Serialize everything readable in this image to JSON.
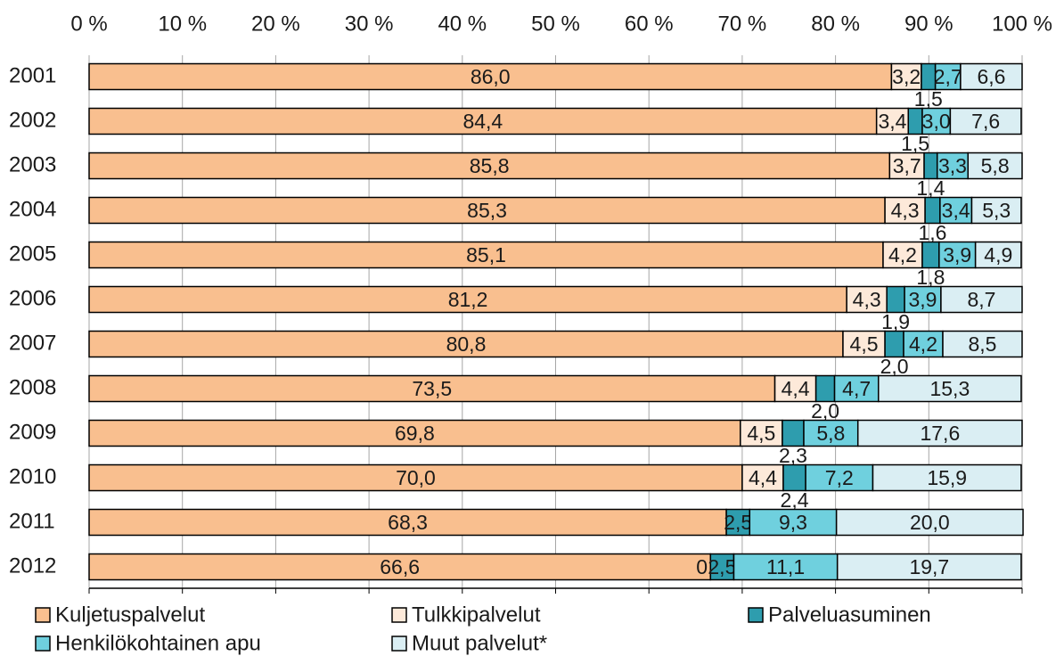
{
  "chart_data": {
    "type": "stacked-bar-horizontal",
    "categories": [
      "2001",
      "2002",
      "2003",
      "2004",
      "2005",
      "2006",
      "2007",
      "2008",
      "2009",
      "2010",
      "2011",
      "2012"
    ],
    "series": [
      {
        "name": "Kuljetuspalvelut",
        "color": "#f9bf8f",
        "values": [
          86.0,
          84.4,
          85.8,
          85.3,
          85.1,
          81.2,
          80.8,
          73.5,
          69.8,
          70.0,
          68.3,
          66.6
        ],
        "value_labels": [
          "86,0",
          "84,4",
          "85,8",
          "85,3",
          "85,1",
          "81,2",
          "80,8",
          "73,5",
          "69,8",
          "70,0",
          "68,3",
          "66,6"
        ]
      },
      {
        "name": "Tulkkipalvelut",
        "color": "#fde9d9",
        "values": [
          3.2,
          3.4,
          3.7,
          4.3,
          4.2,
          4.3,
          4.5,
          4.4,
          4.5,
          4.4,
          null,
          0.0
        ],
        "value_labels": [
          "3,2",
          "3,4",
          "3,7",
          "4,3",
          "4,2",
          "4,3",
          "4,5",
          "4,4",
          "4,5",
          "4,4",
          null,
          "0,0"
        ]
      },
      {
        "name": "Palveluasuminen",
        "color": "#2e9dae",
        "values": [
          1.5,
          1.5,
          1.4,
          1.6,
          1.8,
          1.9,
          2.0,
          2.0,
          2.3,
          2.4,
          2.5,
          2.5
        ],
        "value_labels": [
          "1,5",
          "1,5",
          "1,4",
          "1,6",
          "1,8",
          "1,9",
          "2,0",
          "2,0",
          "2,3",
          "2,4",
          "2,5",
          "2,5"
        ]
      },
      {
        "name": "Henkilökohtainen apu",
        "color": "#6fd0de",
        "values": [
          2.7,
          3.0,
          3.3,
          3.4,
          3.9,
          3.9,
          4.2,
          4.7,
          5.8,
          7.2,
          9.3,
          11.1
        ],
        "value_labels": [
          "2,7",
          "3,0",
          "3,3",
          "3,4",
          "3,9",
          "3,9",
          "4,2",
          "4,7",
          "5,8",
          "7,2",
          "9,3",
          "11,1"
        ]
      },
      {
        "name": "Muut palvelut*",
        "color": "#daeef3",
        "values": [
          6.6,
          7.6,
          5.8,
          5.3,
          4.9,
          8.7,
          8.5,
          15.3,
          17.6,
          15.9,
          20.0,
          19.7
        ],
        "value_labels": [
          "6,6",
          "7,6",
          "5,8",
          "5,3",
          "4,9",
          "8,7",
          "8,5",
          "15,3",
          "17,6",
          "15,9",
          "20,0",
          "19,7"
        ]
      }
    ],
    "xlim": [
      0,
      100
    ],
    "xticks": [
      {
        "value": 0,
        "label": "0 %"
      },
      {
        "value": 10,
        "label": "10 %"
      },
      {
        "value": 20,
        "label": "20 %"
      },
      {
        "value": 30,
        "label": "30 %"
      },
      {
        "value": 40,
        "label": "40 %"
      },
      {
        "value": 50,
        "label": "50 %"
      },
      {
        "value": 60,
        "label": "60 %"
      },
      {
        "value": 70,
        "label": "70 %"
      },
      {
        "value": 80,
        "label": "80 %"
      },
      {
        "value": 90,
        "label": "90 %"
      },
      {
        "value": 100,
        "label": "100 %"
      }
    ],
    "grid": true,
    "legend": "bottom"
  }
}
